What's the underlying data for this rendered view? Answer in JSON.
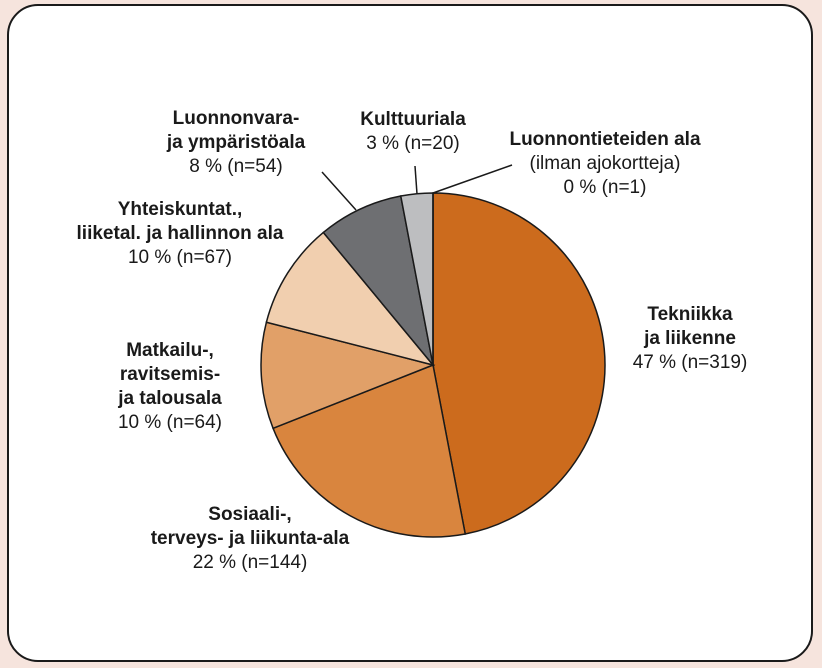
{
  "chart_data": {
    "type": "pie",
    "categories": [
      [
        "Tekniikka",
        "ja liikenne"
      ],
      [
        "Sosiaali-,",
        "terveys- ja liikunta-ala"
      ],
      [
        "Matkailu-,",
        "ravitsemis-",
        "ja talousala"
      ],
      [
        "Yhteiskuntat.,",
        "liiketal. ja hallinnon ala"
      ],
      [
        "Luonnonvara-",
        "ja ympäristöala"
      ],
      [
        "Kulttuuriala"
      ],
      [
        "Luonnontieteiden ala",
        "(ilman ajokortteja)"
      ]
    ],
    "values": [
      47,
      22,
      10,
      10,
      8,
      3,
      0
    ],
    "value_labels": [
      "47 % (n=319)",
      "22 % (n=144)",
      "10 % (n=64)",
      "10 % (n=67)",
      "8 % (n=54)",
      "3 % (n=20)",
      "0 % (n=1)"
    ],
    "colors": [
      "#cc6b1d",
      "#d9853e",
      "#e1a068",
      "#f1cfaf",
      "#6e6f72",
      "#bdbec0",
      "#ffffff"
    ]
  }
}
